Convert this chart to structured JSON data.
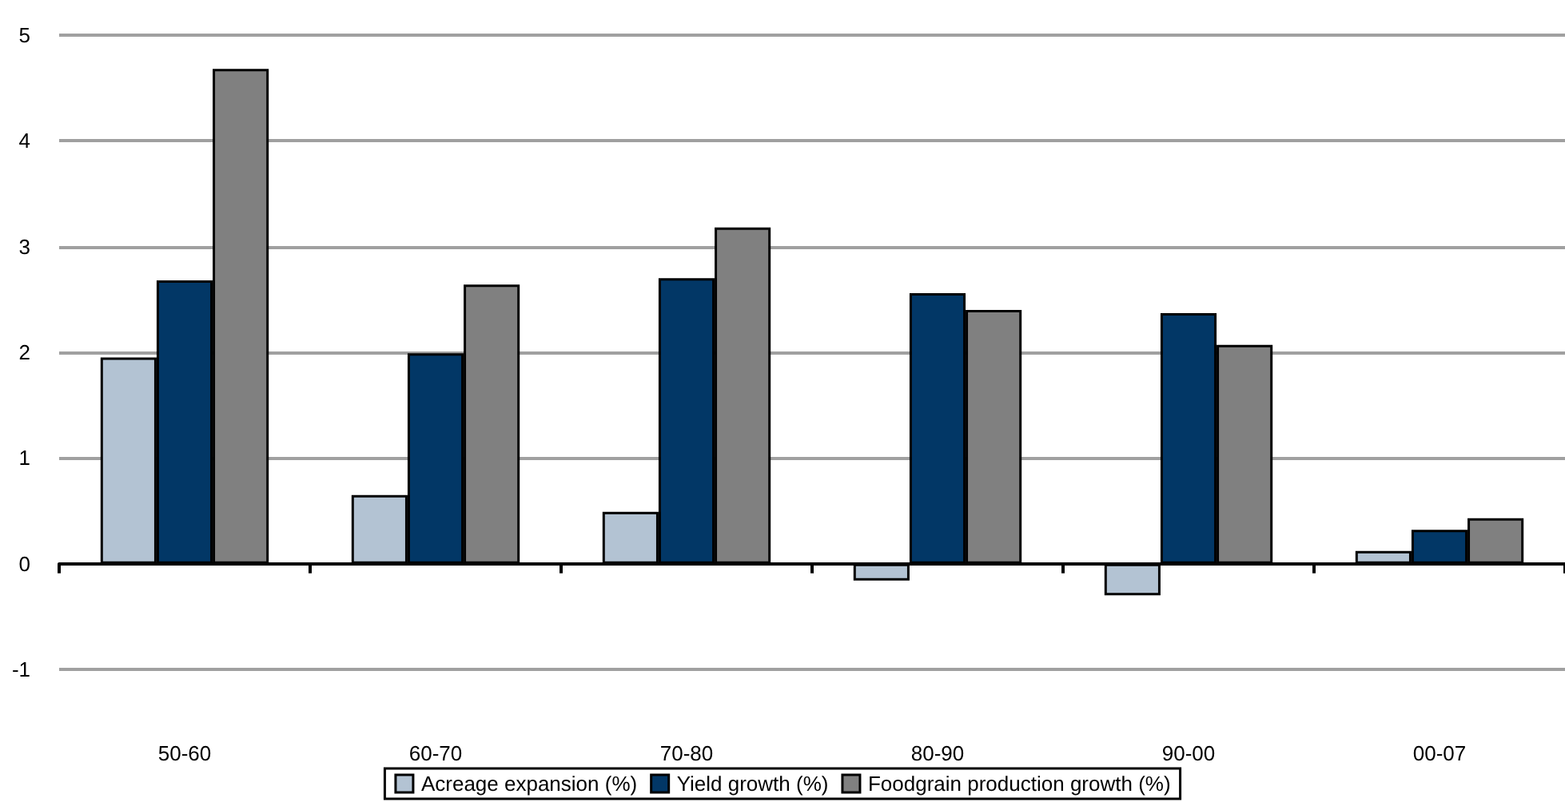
{
  "chart_data": {
    "type": "bar",
    "categories": [
      "50-60",
      "60-70",
      "70-80",
      "80-90",
      "90-00",
      "00-07"
    ],
    "series": [
      {
        "name": "Acreage expansion (%)",
        "color": "#b3c3d3",
        "values": [
          1.95,
          0.65,
          0.49,
          -0.16,
          -0.3,
          0.12
        ]
      },
      {
        "name": "Yield growth (%)",
        "color": "#023766",
        "values": [
          2.68,
          1.99,
          2.7,
          2.56,
          2.37,
          0.32
        ]
      },
      {
        "name": "Foodgrain production growth (%)",
        "color": "#808080",
        "values": [
          4.68,
          2.64,
          3.18,
          2.4,
          2.07,
          0.43
        ]
      }
    ],
    "ylim": [
      -1,
      5
    ],
    "yticks": [
      -1,
      0,
      1,
      2,
      3,
      4,
      5
    ],
    "grid": "y",
    "legend": "bottom"
  }
}
